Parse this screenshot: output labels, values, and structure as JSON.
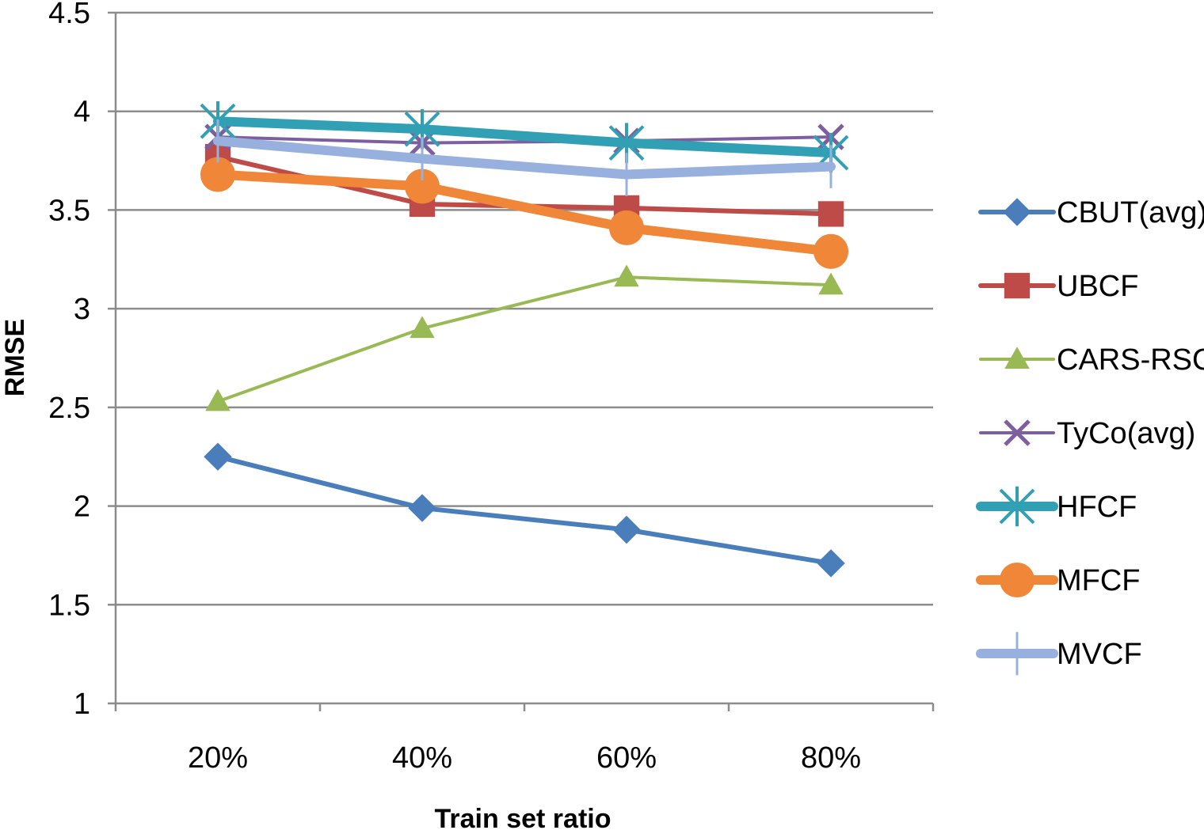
{
  "chart_data": {
    "type": "line",
    "title": "",
    "xlabel": "Train set ratio",
    "ylabel": "RMSE",
    "categories": [
      "20%",
      "40%",
      "60%",
      "80%"
    ],
    "ylim": [
      1,
      4.5
    ],
    "yticks": [
      1,
      1.5,
      2,
      2.5,
      3,
      3.5,
      4,
      4.5
    ],
    "ytick_labels": [
      "1",
      "1.5",
      "2",
      "2.5",
      "3",
      "3.5",
      "4",
      "4.5"
    ],
    "grid": "horizontal",
    "legend_position": "right",
    "series": [
      {
        "name": "CBUT(avg)",
        "values": [
          2.25,
          1.99,
          1.88,
          1.71
        ],
        "color": "#4a7ebb",
        "marker": "diamond",
        "line_width": "medium"
      },
      {
        "name": "UBCF",
        "values": [
          3.77,
          3.53,
          3.51,
          3.48
        ],
        "color": "#be4b48",
        "marker": "square",
        "line_width": "medium"
      },
      {
        "name": "CARS-RSCF",
        "values": [
          2.53,
          2.9,
          3.16,
          3.12
        ],
        "color": "#98b954",
        "marker": "triangle",
        "line_width": "thin"
      },
      {
        "name": "TyCo(avg)",
        "values": [
          3.87,
          3.84,
          3.85,
          3.87
        ],
        "color": "#7d5fa0",
        "marker": "x",
        "line_width": "thin"
      },
      {
        "name": "HFCF",
        "values": [
          3.95,
          3.91,
          3.84,
          3.79
        ],
        "color": "#31a0b4",
        "marker": "star",
        "line_width": "thick"
      },
      {
        "name": "MFCF",
        "values": [
          3.68,
          3.62,
          3.41,
          3.29
        ],
        "color": "#f08638",
        "marker": "circle",
        "line_width": "thick"
      },
      {
        "name": "MVCF",
        "values": [
          3.85,
          3.76,
          3.68,
          3.72
        ],
        "color": "#97b0de",
        "marker": "plus",
        "line_width": "thick"
      }
    ]
  }
}
